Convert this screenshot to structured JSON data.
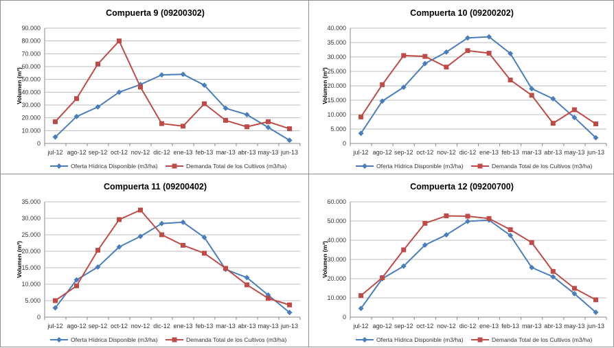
{
  "chart_data": [
    {
      "type": "line",
      "title": "Compuerta 9 (09200302)",
      "ylabel": "Volumen (m³)",
      "categories": [
        "jul-12",
        "ago-12",
        "sep-12",
        "oct-12",
        "nov-12",
        "dic-12",
        "ene-13",
        "feb-13",
        "mar-13",
        "abr-13",
        "may-13",
        "jun-13"
      ],
      "yticks": [
        "0",
        "10.000",
        "20.000",
        "30.000",
        "40.000",
        "50.000",
        "60.000",
        "70.000",
        "80.000",
        "90.000"
      ],
      "ylim": [
        0,
        90000
      ],
      "grid": true,
      "legend": "bottom",
      "series": [
        {
          "name": "Oferta Hídrica Disponible (m3/ha)",
          "color": "#4a7ebb",
          "marker": "diamond",
          "values": [
            5000,
            21000,
            28500,
            40000,
            46000,
            53500,
            54000,
            45500,
            27500,
            22500,
            12500,
            2500
          ]
        },
        {
          "name": "Demanda Total de los Cultivos (m3/ha)",
          "color": "#be4b48",
          "marker": "square",
          "values": [
            17000,
            35000,
            62000,
            80000,
            44000,
            15500,
            13500,
            31000,
            18000,
            13000,
            17000,
            11500
          ]
        }
      ]
    },
    {
      "type": "line",
      "title": "Compuerta 10 (09200202)",
      "ylabel": "Volumen (m³)",
      "categories": [
        "jul-12",
        "ago-12",
        "sep-12",
        "oct-12",
        "nov-12",
        "dic-12",
        "ene-13",
        "feb-13",
        "mar-13",
        "abr-13",
        "may-13",
        "jun-13"
      ],
      "yticks": [
        "0",
        "5.000",
        "10.000",
        "15.000",
        "20.000",
        "25.000",
        "30.000",
        "35.000",
        "40.000"
      ],
      "ylim": [
        0,
        40000
      ],
      "grid": true,
      "legend": "bottom",
      "series": [
        {
          "name": "Oferta Hídrica Disponible (m3/ha)",
          "color": "#4a7ebb",
          "marker": "diamond",
          "values": [
            3500,
            14700,
            19500,
            27700,
            31700,
            36600,
            37000,
            31200,
            19000,
            15500,
            9000,
            2000
          ]
        },
        {
          "name": "Demanda Total de los Cultivos (m3/ha)",
          "color": "#be4b48",
          "marker": "square",
          "values": [
            9200,
            20400,
            30500,
            30200,
            26500,
            32200,
            31300,
            22000,
            16700,
            7000,
            11700,
            6800
          ]
        }
      ]
    },
    {
      "type": "line",
      "title": "Compuerta 11 (09200402)",
      "ylabel": "Volumen (m³)",
      "categories": [
        "jul-12",
        "ago-12",
        "sep-12",
        "oct-12",
        "nov-12",
        "dic-12",
        "ene-13",
        "feb-13",
        "mar-13",
        "abr-13",
        "may-13",
        "jun-13"
      ],
      "yticks": [
        "0",
        "5.000",
        "10.000",
        "15.000",
        "20.000",
        "25.000",
        "30.000",
        "35.000"
      ],
      "ylim": [
        0,
        35000
      ],
      "grid": true,
      "legend": "bottom",
      "series": [
        {
          "name": "Oferta Hídrica Disponible (m3/ha)",
          "color": "#4a7ebb",
          "marker": "diamond",
          "values": [
            2800,
            11300,
            15200,
            21300,
            24500,
            28400,
            28800,
            24200,
            14500,
            12000,
            6700,
            1400
          ]
        },
        {
          "name": "Demanda Total de los Cultivos (m3/ha)",
          "color": "#be4b48",
          "marker": "square",
          "values": [
            5000,
            9500,
            20300,
            29600,
            32500,
            25000,
            21800,
            19400,
            14800,
            9800,
            5700,
            3700
          ]
        }
      ]
    },
    {
      "type": "line",
      "title": "Compuerta 12 (09200700)",
      "ylabel": "Volumen (m³)",
      "categories": [
        "jul-12",
        "ago-12",
        "sep-12",
        "oct-12",
        "nov-12",
        "dic-12",
        "ene-13",
        "feb-13",
        "mar-13",
        "abr-13",
        "may-13",
        "jun-13"
      ],
      "yticks": [
        "0",
        "10.000",
        "20.000",
        "30.000",
        "40.000",
        "50.000",
        "60.000"
      ],
      "ylim": [
        0,
        60000
      ],
      "grid": true,
      "legend": "bottom",
      "series": [
        {
          "name": "Oferta Hídrica Disponible (m3/ha)",
          "color": "#4a7ebb",
          "marker": "diamond",
          "values": [
            4500,
            20000,
            26500,
            37500,
            42800,
            49800,
            50500,
            42500,
            25800,
            21000,
            12200,
            2500
          ]
        },
        {
          "name": "Demanda Total de los Cultivos (m3/ha)",
          "color": "#be4b48",
          "marker": "square",
          "values": [
            11200,
            20500,
            35000,
            48800,
            52700,
            52500,
            51300,
            45500,
            38800,
            23800,
            15000,
            9000
          ]
        }
      ]
    }
  ]
}
